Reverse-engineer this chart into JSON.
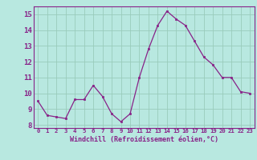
{
  "x": [
    0,
    1,
    2,
    3,
    4,
    5,
    6,
    7,
    8,
    9,
    10,
    11,
    12,
    13,
    14,
    15,
    16,
    17,
    18,
    19,
    20,
    21,
    22,
    23
  ],
  "y": [
    9.5,
    8.6,
    8.5,
    8.4,
    9.6,
    9.6,
    10.5,
    9.8,
    8.7,
    8.2,
    8.7,
    11.0,
    12.8,
    14.3,
    15.2,
    14.7,
    14.3,
    13.3,
    12.3,
    11.8,
    11.0,
    11.0,
    10.1,
    10.0
  ],
  "line_color": "#882288",
  "marker_color": "#882288",
  "bg_color": "#b8e8e0",
  "grid_color": "#99ccbb",
  "xlabel": "Windchill (Refroidissement éolien,°C)",
  "xlabel_color": "#882288",
  "tick_color": "#882288",
  "ylim": [
    7.8,
    15.5
  ],
  "xlim": [
    -0.5,
    23.5
  ],
  "yticks": [
    8,
    9,
    10,
    11,
    12,
    13,
    14,
    15
  ],
  "xticks": [
    0,
    1,
    2,
    3,
    4,
    5,
    6,
    7,
    8,
    9,
    10,
    11,
    12,
    13,
    14,
    15,
    16,
    17,
    18,
    19,
    20,
    21,
    22,
    23
  ]
}
